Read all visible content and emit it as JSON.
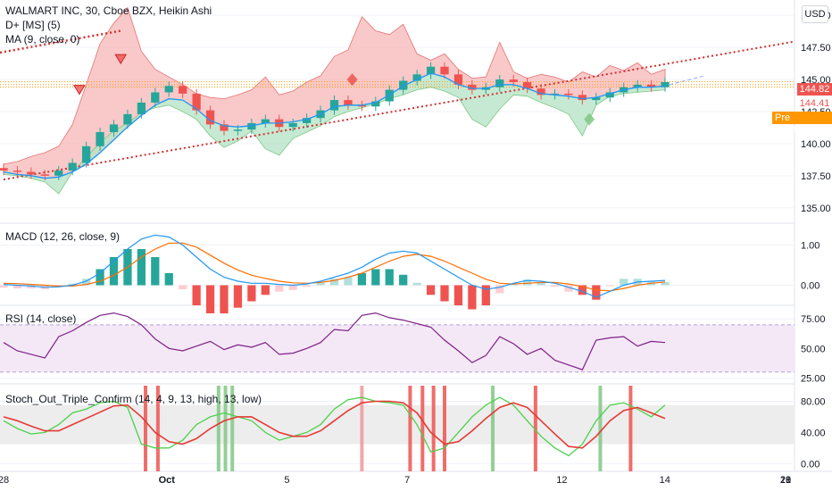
{
  "header": {
    "symbol_line": "WALMART INC, 30, Cboe BZX, Heikin Ashi",
    "indicator1": "D+ [MS] (5)",
    "indicator2": "MA (9, close, 0)"
  },
  "currency_button": "USD",
  "price_tags": {
    "last_price": "144.82",
    "second_price": "144.41",
    "pre_label": "Pre",
    "pre_price": "144.41"
  },
  "colors": {
    "up": "#26a69a",
    "down": "#ef5350",
    "cloud_red": "#f7b7b7",
    "cloud_green": "#b7e4c7",
    "ma": "#2196f3",
    "macd": "#2196f3",
    "signal": "#ff6d00",
    "rsi": "#7e1f86",
    "stoch_fast": "#4cd14c",
    "stoch_slow": "#e53935",
    "pre": "#ff9800"
  },
  "panes": {
    "macd_title": "MACD (12, 26, close, 9)",
    "rsi_title": "RSI (14, close)",
    "stoch_title": "Stoch_Out_Triple_Confirm (14, 4, 9, 13, high, 13, low)"
  },
  "chart_data": [
    {
      "type": "candlestick",
      "title": "WALMART INC, 30, Cboe BZX, Heikin Ashi",
      "x_ticks": [
        "28",
        "Oct",
        "5",
        "7",
        "12",
        "14",
        "19",
        "21",
        "26"
      ],
      "y_ticks": [
        135.0,
        137.5,
        140.0,
        142.5,
        145.0,
        147.5,
        150.0
      ],
      "y_tick_labels": [
        "135.00",
        "137.50",
        "140.00",
        "142.50",
        "145.00",
        "147.50",
        "150.00"
      ],
      "ylim": [
        133.8,
        151.2
      ],
      "close": [
        137.9,
        137.8,
        137.6,
        137.5,
        137.9,
        138.5,
        139.8,
        140.9,
        141.5,
        142.3,
        143.2,
        144.0,
        144.5,
        143.9,
        142.6,
        141.5,
        141.0,
        141.1,
        141.6,
        141.9,
        141.3,
        141.6,
        142.0,
        142.6,
        143.4,
        143.0,
        142.9,
        143.3,
        144.2,
        144.9,
        145.4,
        146.0,
        145.4,
        144.6,
        144.2,
        144.4,
        145.0,
        144.8,
        144.3,
        143.8,
        143.9,
        143.8,
        143.4,
        143.6,
        144.0,
        144.4,
        144.6,
        144.4,
        144.8
      ],
      "open": [
        138.1,
        137.9,
        137.8,
        137.6,
        137.5,
        137.9,
        138.5,
        139.8,
        140.9,
        141.5,
        142.3,
        143.2,
        144.0,
        144.5,
        143.9,
        142.6,
        141.5,
        141.0,
        141.1,
        141.6,
        141.9,
        141.3,
        141.6,
        142.0,
        142.6,
        143.4,
        143.0,
        142.9,
        143.3,
        144.2,
        144.9,
        145.4,
        146.0,
        145.4,
        144.6,
        144.2,
        144.4,
        145.0,
        144.8,
        144.3,
        143.8,
        143.9,
        143.8,
        143.4,
        143.6,
        144.0,
        144.4,
        144.6,
        144.4
      ],
      "ma9": [
        137.8,
        137.6,
        137.5,
        137.3,
        137.4,
        137.8,
        138.4,
        139.3,
        140.3,
        141.3,
        142.2,
        143.0,
        143.5,
        143.4,
        142.7,
        141.8,
        141.4,
        141.3,
        141.4,
        141.6,
        141.6,
        141.7,
        141.9,
        142.3,
        142.9,
        143.0,
        143.0,
        143.2,
        143.8,
        144.5,
        145.0,
        145.5,
        145.2,
        144.6,
        144.3,
        144.3,
        144.6,
        144.6,
        144.3,
        143.9,
        143.8,
        143.7,
        143.5,
        143.6,
        143.9,
        144.2,
        144.4,
        144.4,
        144.5
      ],
      "cloud_upper": [
        138.4,
        138.6,
        139.0,
        139.3,
        139.8,
        141.5,
        144.6,
        147.8,
        149.4,
        150.6,
        147.2,
        145.8,
        145.2,
        144.6,
        143.9,
        143.6,
        143.5,
        143.8,
        144.2,
        145.2,
        143.8,
        144.1,
        144.8,
        145.3,
        146.8,
        147.3,
        149.9,
        148.8,
        148.5,
        149.3,
        147.0,
        146.5,
        147.0,
        145.8,
        145.1,
        145.2,
        147.9,
        145.6,
        145.1,
        145.4,
        145.2,
        144.8,
        145.6,
        145.2,
        146.1,
        145.7,
        146.3,
        145.4,
        145.8
      ],
      "cloud_lower": [
        137.6,
        137.5,
        137.3,
        137.0,
        136.1,
        137.8,
        138.9,
        140.1,
        141.0,
        141.6,
        142.4,
        142.8,
        143.0,
        142.5,
        141.9,
        140.6,
        139.7,
        140.2,
        141.0,
        139.6,
        139.1,
        140.4,
        140.9,
        141.4,
        142.1,
        142.5,
        142.8,
        143.1,
        143.5,
        143.8,
        144.2,
        144.4,
        144.1,
        143.6,
        141.9,
        141.3,
        142.7,
        143.8,
        143.7,
        143.2,
        142.8,
        142.3,
        140.6,
        143.0,
        143.7,
        143.9,
        144.0,
        144.1,
        144.2
      ],
      "trendline": {
        "from": [
          0,
          137.2
        ],
        "to": [
          48,
          146.2
        ]
      },
      "horizontal_levels": [
        144.82,
        144.41,
        144.6
      ],
      "last_price": 144.82
    },
    {
      "type": "line",
      "title": "MACD (12, 26, close, 9)",
      "y_ticks": [
        0.0,
        1.0
      ],
      "y_tick_labels": [
        "0.00",
        "1.00"
      ],
      "ylim": [
        -0.5,
        1.5
      ],
      "series": [
        {
          "name": "MACD",
          "values": [
            0.02,
            0.0,
            -0.02,
            -0.05,
            -0.04,
            0.0,
            0.1,
            0.3,
            0.6,
            0.9,
            1.15,
            1.25,
            1.2,
            1.0,
            0.7,
            0.4,
            0.2,
            0.1,
            0.05,
            0.05,
            0.02,
            0.0,
            0.03,
            0.1,
            0.2,
            0.3,
            0.45,
            0.65,
            0.8,
            0.85,
            0.8,
            0.6,
            0.4,
            0.2,
            0.0,
            -0.1,
            -0.05,
            0.05,
            0.12,
            0.1,
            0.05,
            -0.05,
            -0.15,
            -0.3,
            -0.15,
            0.0,
            0.08,
            0.1,
            0.12
          ]
        },
        {
          "name": "Signal",
          "values": [
            0.05,
            0.04,
            0.02,
            0.0,
            -0.02,
            -0.02,
            0.02,
            0.1,
            0.25,
            0.45,
            0.7,
            0.9,
            1.05,
            1.05,
            0.95,
            0.75,
            0.55,
            0.38,
            0.25,
            0.17,
            0.1,
            0.06,
            0.05,
            0.07,
            0.12,
            0.2,
            0.3,
            0.45,
            0.6,
            0.72,
            0.77,
            0.72,
            0.6,
            0.45,
            0.3,
            0.15,
            0.05,
            0.03,
            0.05,
            0.07,
            0.07,
            0.03,
            -0.03,
            -0.12,
            -0.14,
            -0.08,
            0.0,
            0.05,
            0.08
          ]
        }
      ]
    },
    {
      "type": "line",
      "title": "RSI (14, close)",
      "y_ticks": [
        25,
        50,
        75
      ],
      "y_tick_labels": [
        "25.00",
        "50.00",
        "75.00"
      ],
      "ylim": [
        20,
        85
      ],
      "band": [
        30,
        70
      ],
      "series": [
        {
          "name": "RSI",
          "values": [
            55,
            48,
            45,
            42,
            60,
            65,
            72,
            78,
            80,
            77,
            70,
            58,
            50,
            48,
            52,
            56,
            49,
            53,
            51,
            55,
            45,
            46,
            50,
            55,
            66,
            65,
            78,
            80,
            76,
            74,
            71,
            68,
            57,
            48,
            38,
            44,
            60,
            54,
            45,
            50,
            40,
            36,
            32,
            57,
            59,
            60,
            52,
            56,
            55
          ]
        }
      ]
    },
    {
      "type": "line",
      "title": "Stoch_Out_Triple_Confirm (14, 4, 9, 13, high, 13, low)",
      "y_ticks": [
        0,
        40,
        80
      ],
      "y_tick_labels": [
        "0.00",
        "40.00",
        "80.00"
      ],
      "ylim": [
        -10,
        100
      ],
      "band": [
        25,
        75
      ],
      "series": [
        {
          "name": "Fast",
          "values": [
            55,
            45,
            38,
            40,
            50,
            65,
            70,
            78,
            80,
            72,
            25,
            20,
            20,
            30,
            50,
            60,
            65,
            60,
            55,
            40,
            30,
            35,
            40,
            50,
            70,
            82,
            85,
            80,
            78,
            75,
            50,
            15,
            20,
            40,
            60,
            75,
            85,
            75,
            55,
            35,
            20,
            10,
            25,
            55,
            75,
            78,
            70,
            60,
            75
          ]
        },
        {
          "name": "Slow",
          "values": [
            60,
            55,
            48,
            42,
            42,
            50,
            58,
            66,
            74,
            75,
            60,
            40,
            28,
            25,
            32,
            45,
            55,
            60,
            60,
            50,
            40,
            35,
            35,
            42,
            55,
            68,
            78,
            80,
            80,
            78,
            65,
            40,
            25,
            28,
            42,
            58,
            72,
            78,
            72,
            55,
            38,
            22,
            20,
            35,
            55,
            68,
            72,
            65,
            58
          ]
        }
      ]
    }
  ]
}
